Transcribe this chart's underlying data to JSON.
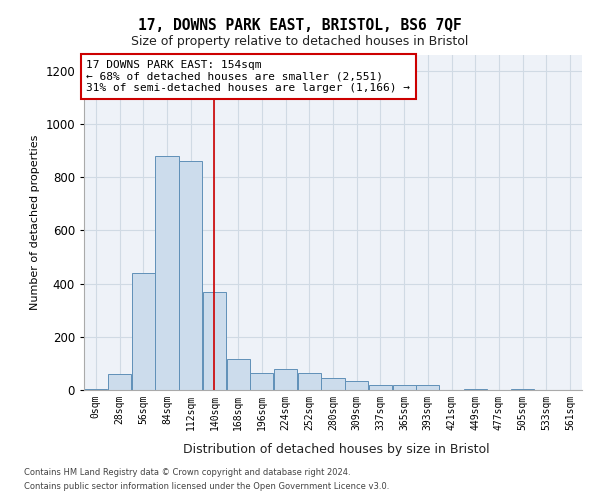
{
  "title1": "17, DOWNS PARK EAST, BRISTOL, BS6 7QF",
  "title2": "Size of property relative to detached houses in Bristol",
  "xlabel": "Distribution of detached houses by size in Bristol",
  "ylabel": "Number of detached properties",
  "bar_color": "#ccdcec",
  "bar_edge_color": "#6090b8",
  "bin_labels": [
    "0sqm",
    "28sqm",
    "56sqm",
    "84sqm",
    "112sqm",
    "140sqm",
    "168sqm",
    "196sqm",
    "224sqm",
    "252sqm",
    "280sqm",
    "309sqm",
    "337sqm",
    "365sqm",
    "393sqm",
    "421sqm",
    "449sqm",
    "477sqm",
    "505sqm",
    "533sqm",
    "561sqm"
  ],
  "bar_heights": [
    5,
    60,
    440,
    880,
    860,
    370,
    115,
    65,
    80,
    65,
    45,
    35,
    20,
    20,
    20,
    0,
    5,
    0,
    5,
    0,
    0
  ],
  "ylim": [
    0,
    1260
  ],
  "yticks": [
    0,
    200,
    400,
    600,
    800,
    1000,
    1200
  ],
  "annotation_text": "17 DOWNS PARK EAST: 154sqm\n← 68% of detached houses are smaller (2,551)\n31% of semi-detached houses are larger (1,166) →",
  "vline_x": 5.0,
  "annotation_box_color": "#ffffff",
  "annotation_box_edge": "#cc0000",
  "footer1": "Contains HM Land Registry data © Crown copyright and database right 2024.",
  "footer2": "Contains public sector information licensed under the Open Government Licence v3.0.",
  "grid_color": "#d0dae4",
  "background_color": "#eef2f8"
}
